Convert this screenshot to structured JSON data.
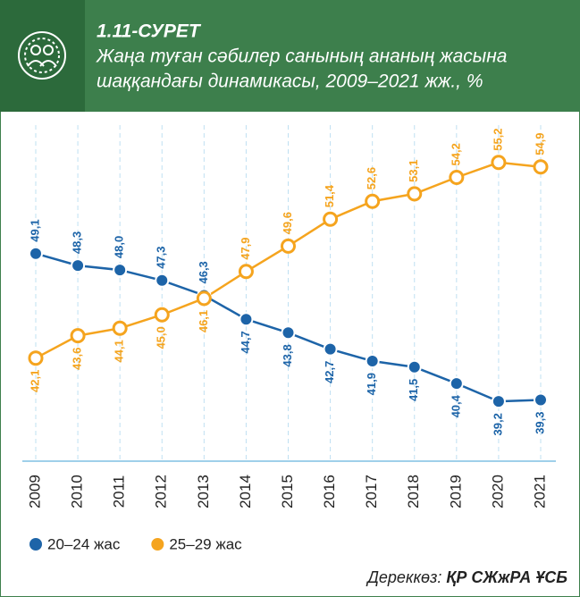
{
  "header": {
    "label": "1.11-СУРЕТ",
    "line1": "Жаңа туған сәбилер санының ананың жасына",
    "line2": "шаққандағы динамикасы, 2009–2021 жж., %"
  },
  "chart_data": {
    "type": "line",
    "categories": [
      "2009",
      "2010",
      "2011",
      "2012",
      "2013",
      "2014",
      "2015",
      "2016",
      "2017",
      "2018",
      "2019",
      "2020",
      "2021"
    ],
    "series": [
      {
        "name": "20–24 жас",
        "color": "#1d64a8",
        "values": [
          49.1,
          48.3,
          48.0,
          47.3,
          46.3,
          44.7,
          43.8,
          42.7,
          41.9,
          41.5,
          40.4,
          39.2,
          39.3
        ],
        "value_labels": [
          "49,1",
          "48,3",
          "48,0",
          "47,3",
          "46,3",
          "44,7",
          "43,8",
          "42,7",
          "41,9",
          "41,5",
          "40,4",
          "39,2",
          "39,3"
        ]
      },
      {
        "name": "25–29 жас",
        "color": "#f5a41e",
        "values": [
          42.1,
          43.6,
          44.1,
          45.0,
          46.1,
          47.9,
          49.6,
          51.4,
          52.6,
          53.1,
          54.2,
          55.2,
          54.9
        ],
        "value_labels": [
          "42,1",
          "43,6",
          "44,1",
          "45,0",
          "46,1",
          "47,9",
          "49,6",
          "51,4",
          "52,6",
          "53,1",
          "54,2",
          "55,2",
          "54,9"
        ]
      }
    ],
    "ylim": [
      35.2,
      57.7
    ],
    "grid": true,
    "legend": "bottom-left"
  },
  "source": {
    "label": "Дереккөз:",
    "org": "ҚР СЖжРА ҰСБ"
  }
}
